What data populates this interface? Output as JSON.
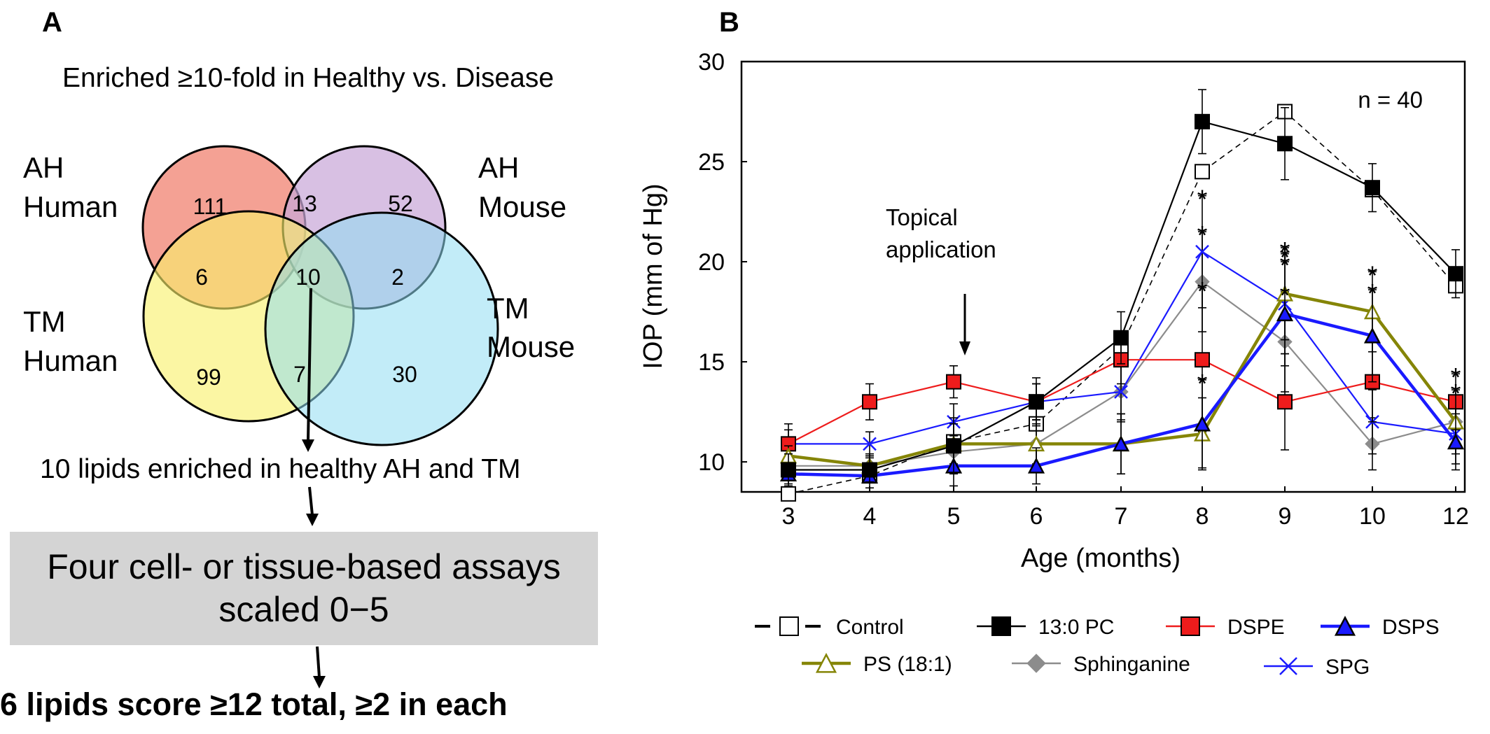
{
  "panel_a": {
    "label": "A",
    "title": "Enriched ≥10-fold in Healthy vs. Disease",
    "circles": [
      {
        "key": "ah_human",
        "line1": "AH",
        "line2": "Human",
        "color": "#f28c7c"
      },
      {
        "key": "ah_mouse",
        "line1": "AH",
        "line2": "Mouse",
        "color": "#c9a8d8"
      },
      {
        "key": "tm_human",
        "line1": "TM",
        "line2": "Human",
        "color": "#f9f06a"
      },
      {
        "key": "tm_mouse",
        "line1": "TM",
        "line2": "Mouse",
        "color": "#8fdcf3"
      }
    ],
    "regions": {
      "ah_human_only": "111",
      "ah_human_ah_mouse": "13",
      "ah_mouse_only": "52",
      "ah_human_tm_human": "6",
      "all_four": "10",
      "ah_mouse_tm_mouse": "2",
      "tm_human_only": "99",
      "tm_human_tm_mouse": "7",
      "tm_mouse_only": "30"
    },
    "step1": "10 lipids enriched in healthy  AH and TM",
    "assay_line1": "Four cell- or tissue-based assays",
    "assay_line2": "scaled 0−5",
    "result": "6 lipids score ≥12 total, ≥2 in each"
  },
  "panel_b": {
    "label": "B",
    "annotation_n": "n = 40",
    "annotation_topical": [
      "Topical",
      "application"
    ]
  },
  "chart_data": {
    "type": "line",
    "title": "",
    "xlabel": "Age (months)",
    "ylabel": "IOP (mm of Hg)",
    "categories": [
      "3",
      "4",
      "5",
      "6",
      "7",
      "8",
      "9",
      "10",
      "12"
    ],
    "ylim": [
      8.5,
      30
    ],
    "yticks": [
      10,
      15,
      20,
      25,
      30
    ],
    "grid": false,
    "legend_position": "bottom",
    "arrow_at": "5",
    "series": [
      {
        "name": "Control",
        "color": "#000000",
        "marker": "open-square",
        "dashed": true,
        "width": 1.6,
        "values": [
          8.4,
          9.3,
          11.0,
          11.9,
          15.7,
          24.5,
          27.5,
          23.6,
          18.8
        ],
        "errors": [
          0,
          0,
          0,
          0,
          0,
          0,
          0,
          0,
          0
        ]
      },
      {
        "name": "13:0 PC",
        "color": "#000000",
        "marker": "square",
        "dashed": false,
        "width": 2.2,
        "values": [
          9.6,
          9.6,
          10.8,
          13.0,
          16.2,
          27.0,
          25.9,
          23.7,
          19.4
        ],
        "errors": [
          0.8,
          0.6,
          1.4,
          1.2,
          1.3,
          1.6,
          1.8,
          1.2,
          1.2
        ]
      },
      {
        "name": "DSPE",
        "color": "#ee1c1c",
        "marker": "square",
        "dashed": false,
        "width": 2.2,
        "values": [
          10.9,
          13.0,
          14.0,
          13.0,
          15.1,
          15.1,
          13.0,
          14.0,
          13.0
        ],
        "errors": [
          1.0,
          0.9,
          0.8,
          0.9,
          1.2,
          3.6,
          2.4,
          2.0,
          1.4
        ]
      },
      {
        "name": "DSPS",
        "color": "#1a1aff",
        "marker": "triangle",
        "dashed": false,
        "width": 4.5,
        "values": [
          9.4,
          9.3,
          9.8,
          9.8,
          10.9,
          11.9,
          17.4,
          16.3,
          11.0
        ],
        "errors": [
          0.5,
          0.6,
          1.0,
          0.9,
          1.5,
          2.2,
          2.6,
          2.3,
          1.4
        ]
      },
      {
        "name": "PS (18:1)",
        "color": "#858507",
        "marker": "open-triangle",
        "dashed": false,
        "width": 4.5,
        "values": [
          10.3,
          9.8,
          10.9,
          10.9,
          10.9,
          11.4,
          18.4,
          17.5,
          12.0
        ],
        "errors": [
          0.5,
          0.6,
          1.0,
          1.2,
          1.5,
          1.8,
          2.3,
          2.0,
          1.6
        ]
      },
      {
        "name": "Sphinganine",
        "color": "#8c8c8c",
        "marker": "diamond",
        "dashed": false,
        "width": 2.2,
        "values": [
          9.8,
          9.8,
          10.5,
          10.9,
          13.5,
          19.0,
          16.0,
          10.9,
          12.0
        ],
        "errors": [
          0.5,
          0.5,
          0.8,
          1.0,
          1.4,
          2.5,
          2.5,
          1.3,
          1.3
        ]
      },
      {
        "name": "SPG",
        "color": "#1a1aff",
        "marker": "x",
        "dashed": false,
        "width": 2.2,
        "values": [
          10.9,
          10.9,
          12.0,
          13.0,
          13.5,
          20.5,
          17.9,
          12.0,
          11.4
        ],
        "errors": [
          0.7,
          0.6,
          0.9,
          0.9,
          1.5,
          2.8,
          2.5,
          1.6,
          1.5
        ]
      }
    ],
    "significance_labels": [
      {
        "category": "8",
        "labels": [
          "*",
          "*",
          "*",
          "*"
        ]
      },
      {
        "category": "9",
        "labels": [
          "*",
          "*",
          "*",
          "*"
        ]
      },
      {
        "category": "10",
        "labels": [
          "*",
          "*"
        ]
      },
      {
        "category": "12",
        "labels": [
          "*",
          "*"
        ]
      }
    ]
  }
}
